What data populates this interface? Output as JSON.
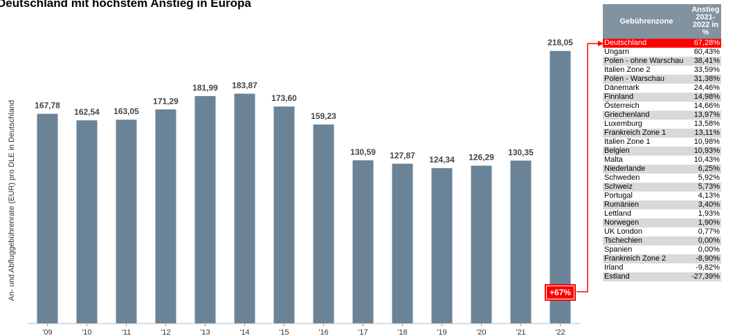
{
  "title": "Deutschland mit höchstem Anstieg in Europa",
  "chart_data": {
    "type": "bar",
    "categories": [
      "'09",
      "'10",
      "'11",
      "'12",
      "'13",
      "'14",
      "'15",
      "'16",
      "'17",
      "'18",
      "'19",
      "'20",
      "'21",
      "'22"
    ],
    "values": [
      167.78,
      162.54,
      163.05,
      171.29,
      181.99,
      183.87,
      173.6,
      159.23,
      130.59,
      127.87,
      124.34,
      126.29,
      130.35,
      218.05
    ],
    "value_labels": [
      "167,78",
      "162,54",
      "163,05",
      "171,29",
      "181,99",
      "183,87",
      "173,60",
      "159,23",
      "130,59",
      "127,87",
      "124,34",
      "126,29",
      "130,35",
      "218,05"
    ],
    "ylabel": "An- und Abfluggebührenrate (EUR) pro DLE in Deutschland",
    "ylim": [
      0,
      240
    ],
    "grid": false,
    "bar_color": "#6b8397",
    "annotation": "+67%",
    "annotation_color": "#ff0000"
  },
  "table": {
    "headers": [
      "Gebührenzone",
      "Anstieg 2021-2022 in %"
    ],
    "rows": [
      {
        "zone": "Deutschland",
        "value": "67,28%"
      },
      {
        "zone": "Ungarn",
        "value": "60,43%"
      },
      {
        "zone": "Polen - ohne Warschau",
        "value": "38,41%"
      },
      {
        "zone": "Italien Zone 2",
        "value": "33,59%"
      },
      {
        "zone": "Polen - Warschau",
        "value": "31,38%"
      },
      {
        "zone": "Dänemark",
        "value": "24,46%"
      },
      {
        "zone": "Finnland",
        "value": "14,98%"
      },
      {
        "zone": "Österreich",
        "value": "14,66%"
      },
      {
        "zone": "Griechenland",
        "value": "13,97%"
      },
      {
        "zone": "Luxemburg",
        "value": "13,58%"
      },
      {
        "zone": "Frankreich Zone 1",
        "value": "13,11%"
      },
      {
        "zone": "Italien Zone 1",
        "value": "10,98%"
      },
      {
        "zone": "Belgien",
        "value": "10,93%"
      },
      {
        "zone": "Malta",
        "value": "10,43%"
      },
      {
        "zone": "Niederlande",
        "value": "6,25%"
      },
      {
        "zone": "Schweden",
        "value": "5,92%"
      },
      {
        "zone": "Schweiz",
        "value": "5,73%"
      },
      {
        "zone": "Portugal",
        "value": "4,13%"
      },
      {
        "zone": "Rumänien",
        "value": "3,40%"
      },
      {
        "zone": "Lettland",
        "value": "1,93%"
      },
      {
        "zone": "Norwegen",
        "value": "1,90%"
      },
      {
        "zone": "UK London",
        "value": "0,77%"
      },
      {
        "zone": "Tschechien",
        "value": "0,00%"
      },
      {
        "zone": "Spanien",
        "value": "0,00%"
      },
      {
        "zone": "Frankreich Zone 2",
        "value": "-8,90%"
      },
      {
        "zone": "Irland",
        "value": "-9,82%"
      },
      {
        "zone": "Estland",
        "value": "-27,39%"
      }
    ]
  }
}
